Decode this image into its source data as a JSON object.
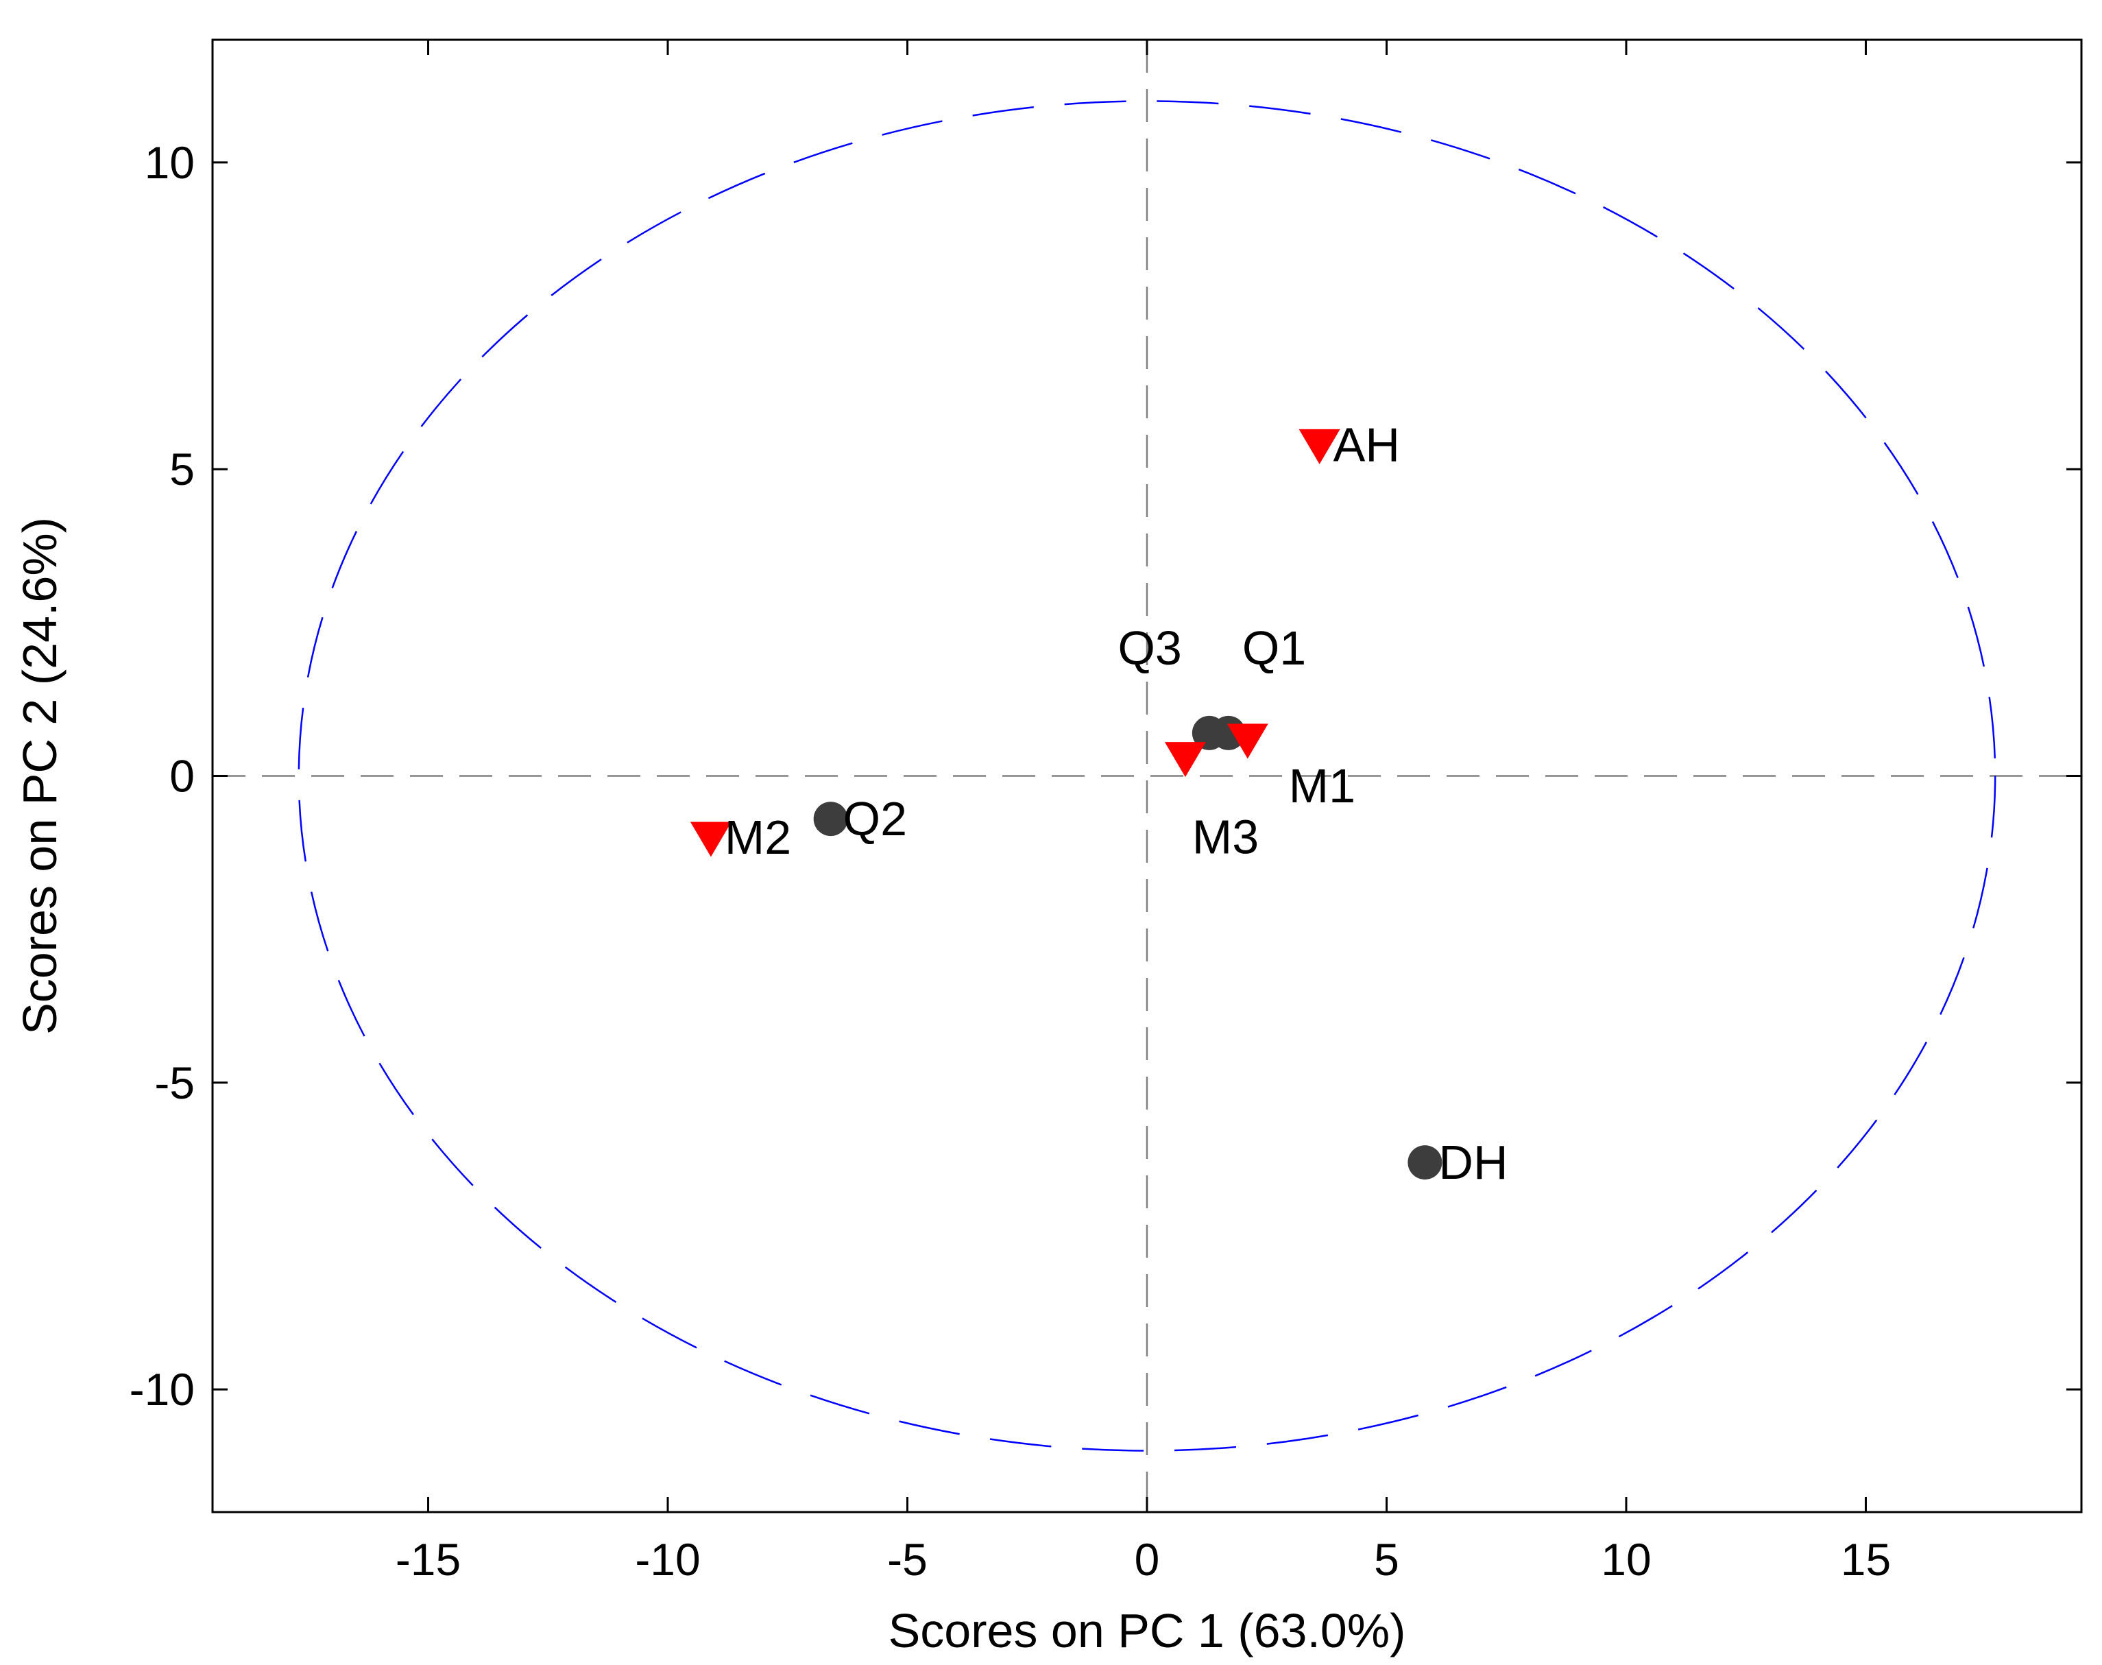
{
  "chart_data": {
    "type": "scatter",
    "title": "",
    "xlabel": "Scores on PC 1 (63.0%)",
    "ylabel": "Scores on PC 2 (24.6%)",
    "xlim": [
      -19.5,
      19.5
    ],
    "ylim": [
      -12.0,
      12.0
    ],
    "xticks": [
      -15,
      -10,
      -5,
      0,
      5,
      10,
      15
    ],
    "yticks": [
      -10,
      -5,
      0,
      5,
      10
    ],
    "xtick_labels": [
      "-15",
      "-10",
      "-5",
      "0",
      "5",
      "10",
      "15"
    ],
    "ytick_labels": [
      "-10",
      "-5",
      "0",
      "5",
      "10"
    ],
    "grid": false,
    "reference_lines": {
      "x": 0,
      "y": 0,
      "style": "dashed",
      "color": "#808080"
    },
    "confidence_ellipse": {
      "center": [
        0,
        0
      ],
      "x_radius": 17.7,
      "y_radius": 11.0,
      "style": "dashed",
      "color": "#0000ff"
    },
    "series": [
      {
        "marker": "circle",
        "color": "#3d3d3d",
        "points": [
          {
            "label": "Q1",
            "x": 1.7,
            "y": 0.7
          },
          {
            "label": "Q3",
            "x": 1.3,
            "y": 0.7
          },
          {
            "label": "Q2",
            "x": -6.6,
            "y": -0.7
          },
          {
            "label": "DH",
            "x": 5.8,
            "y": -6.3
          }
        ]
      },
      {
        "marker": "triangle-down",
        "color": "#ff0000",
        "points": [
          {
            "label": "AH",
            "x": 3.6,
            "y": 5.4
          },
          {
            "label": "M1",
            "x": 2.1,
            "y": 0.6
          },
          {
            "label": "M3",
            "x": 0.8,
            "y": 0.3
          },
          {
            "label": "M2",
            "x": -9.1,
            "y": -1.0
          }
        ]
      }
    ]
  }
}
